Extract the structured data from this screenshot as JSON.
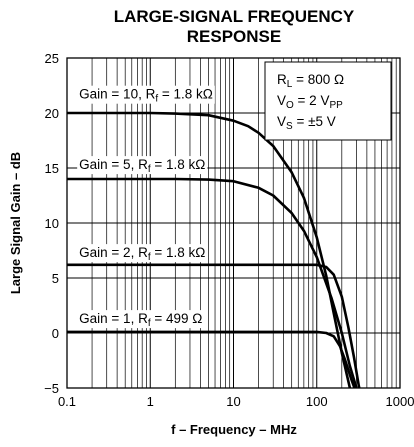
{
  "chart_data": {
    "type": "line",
    "title_line1": "LARGE-SIGNAL FREQUENCY",
    "title_line2": "RESPONSE",
    "xlabel": "f – Frequency – MHz",
    "ylabel": "Large Signal Gain – dB",
    "x_scale": "log",
    "xlim": [
      0.1,
      1000
    ],
    "ylim": [
      -5,
      25
    ],
    "x_ticks": [
      {
        "value": 0.1,
        "label": "0.1"
      },
      {
        "value": 1,
        "label": "1"
      },
      {
        "value": 10,
        "label": "10"
      },
      {
        "value": 100,
        "label": "100"
      },
      {
        "value": 1000,
        "label": "1000"
      }
    ],
    "y_ticks": [
      {
        "value": -5,
        "label": "−5"
      },
      {
        "value": 0,
        "label": "0"
      },
      {
        "value": 5,
        "label": "5"
      },
      {
        "value": 10,
        "label": "10"
      },
      {
        "value": 15,
        "label": "15"
      },
      {
        "value": 20,
        "label": "20"
      },
      {
        "value": 25,
        "label": "25"
      }
    ],
    "grid": true,
    "line_color": "#000000",
    "conditions": {
      "rl": {
        "main": "R",
        "sub": "L",
        "rest": " = 800 Ω"
      },
      "vo": {
        "main": "V",
        "sub": "O",
        "rest": " = 2 V",
        "sub2": "PP"
      },
      "vs": {
        "main": "V",
        "sub": "S",
        "rest": " = ±5 V"
      }
    },
    "series": [
      {
        "label_main": "Gain = 10, R",
        "label_sub": "f",
        "label_rest": " = 1.8 kΩ",
        "label_pos": {
          "x": 0.14,
          "y": 21.3
        },
        "x": [
          0.1,
          0.5,
          1,
          2,
          5,
          10,
          15,
          20,
          30,
          50,
          70,
          100,
          130,
          160,
          200,
          250,
          300
        ],
        "y": [
          20,
          20,
          20,
          19.95,
          19.8,
          19.3,
          18.8,
          18.2,
          17,
          14.6,
          12.3,
          8.7,
          5.2,
          1.8,
          -1.8,
          -5,
          -7
        ]
      },
      {
        "label_main": "Gain = 5, R",
        "label_sub": "f",
        "label_rest": " = 1.8 kΩ",
        "label_pos": {
          "x": 0.14,
          "y": 14.9
        },
        "x": [
          0.1,
          0.5,
          1,
          2,
          5,
          10,
          20,
          30,
          50,
          70,
          100,
          150,
          200,
          250,
          300,
          350
        ],
        "y": [
          14,
          14,
          14,
          14,
          13.95,
          13.8,
          13.2,
          12.5,
          10.9,
          9.3,
          6.9,
          3.2,
          0,
          -3,
          -5,
          -6.5
        ]
      },
      {
        "label_main": "Gain = 2, R",
        "label_sub": "f",
        "label_rest": " = 1.8 kΩ",
        "label_pos": {
          "x": 0.14,
          "y": 6.9
        },
        "x": [
          0.1,
          1,
          10,
          30,
          60,
          100,
          130,
          160,
          200,
          240,
          280,
          320,
          360
        ],
        "y": [
          6.2,
          6.2,
          6.2,
          6.2,
          6.2,
          6.2,
          6.0,
          5.3,
          3.3,
          0.5,
          -2.2,
          -4.8,
          -6.5
        ]
      },
      {
        "label_main": "Gain = 1, R",
        "label_sub": "f",
        "label_rest": " = 499 Ω",
        "label_pos": {
          "x": 0.14,
          "y": 0.9
        },
        "x": [
          0.1,
          1,
          10,
          50,
          100,
          130,
          160,
          190,
          220,
          260,
          300,
          340
        ],
        "y": [
          0.1,
          0.1,
          0.1,
          0.1,
          0.1,
          0,
          -0.3,
          -1.2,
          -2.5,
          -4.2,
          -5.5,
          -6.5
        ]
      }
    ]
  }
}
